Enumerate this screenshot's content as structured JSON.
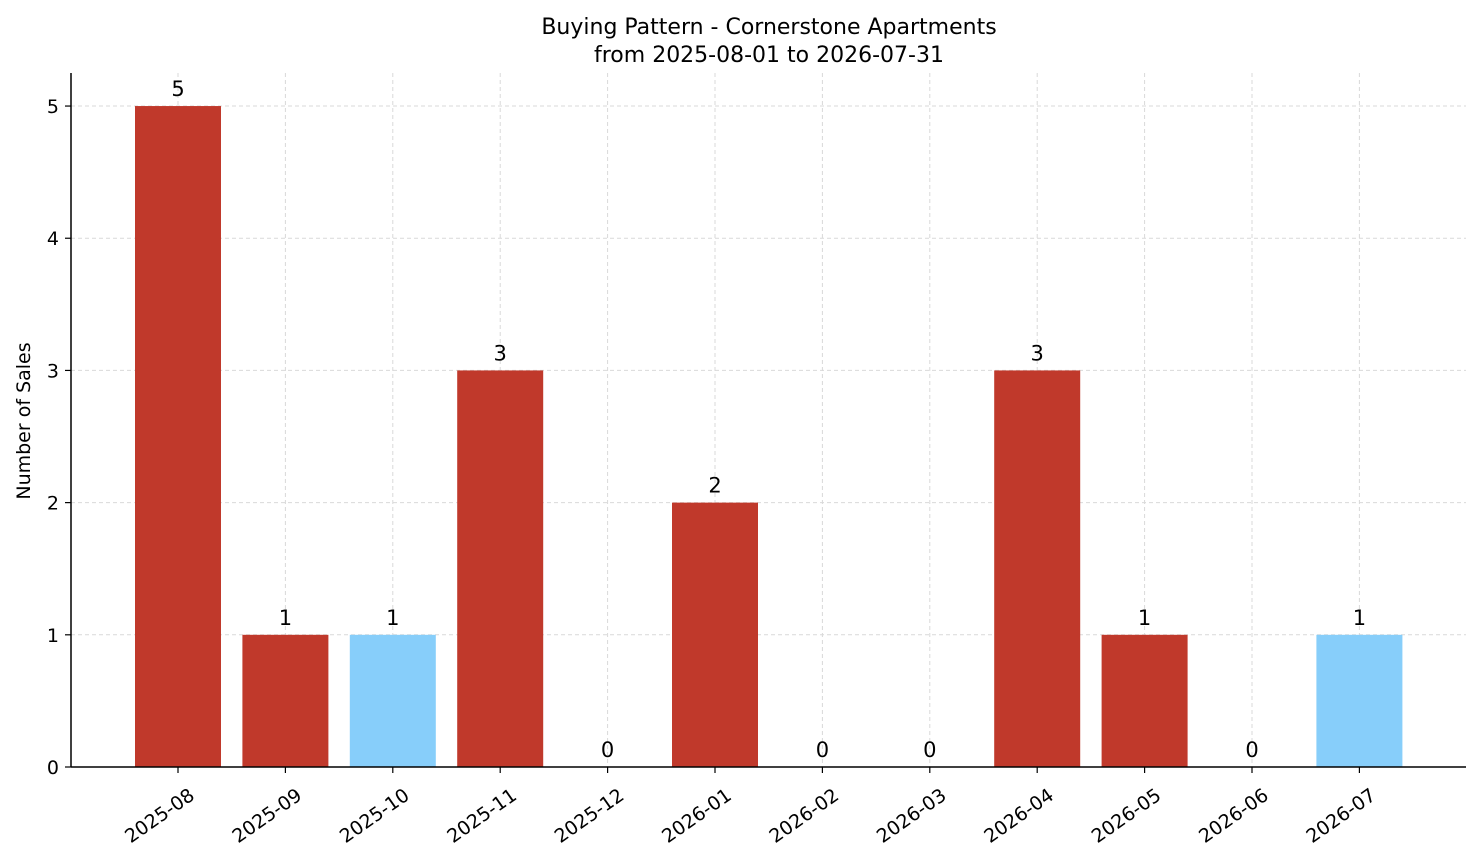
{
  "chart_data": {
    "type": "bar",
    "title": "Buying Pattern - Cornerstone Apartments",
    "subtitle": "from 2025-08-01 to 2026-07-31",
    "xlabel": "",
    "ylabel": "Number of Sales",
    "categories": [
      "2025-08",
      "2025-09",
      "2025-10",
      "2025-11",
      "2025-12",
      "2026-01",
      "2026-02",
      "2026-03",
      "2026-04",
      "2026-05",
      "2026-06",
      "2026-07"
    ],
    "values": [
      5,
      1,
      1,
      3,
      0,
      2,
      0,
      0,
      3,
      1,
      0,
      1
    ],
    "bar_colors": [
      "#c0392b",
      "#c0392b",
      "#87cefa",
      "#c0392b",
      "#c0392b",
      "#c0392b",
      "#c0392b",
      "#c0392b",
      "#c0392b",
      "#c0392b",
      "#c0392b",
      "#87cefa"
    ],
    "yticks": [
      0,
      1,
      2,
      3,
      4,
      5
    ],
    "ylim": [
      0,
      5.25
    ],
    "grid": true,
    "legend": false
  }
}
